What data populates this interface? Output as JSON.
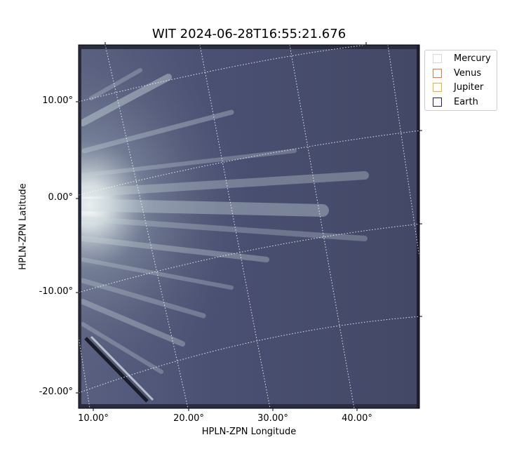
{
  "title": "WIT 2024-06-28T16:55:21.676",
  "axes": {
    "xlabel": "HPLN-ZPN Longitude",
    "ylabel": "HPLN-ZPN Latitude",
    "xticks": [
      "10.00°",
      "20.00°",
      "30.00°",
      "40.00°"
    ],
    "yticks": [
      "10.00°",
      "0.00°",
      "-10.00°",
      "-20.00°"
    ]
  },
  "legend": {
    "placement": "outside-top-right",
    "entries": [
      {
        "name": "Mercury",
        "color": "#d9d9d9"
      },
      {
        "name": "Venus",
        "color": "#e07b39"
      },
      {
        "name": "Jupiter",
        "color": "#e6b422"
      },
      {
        "name": "Earth",
        "color": "#1a1a7a"
      }
    ]
  },
  "image": {
    "colormap_dark": "#3d4260",
    "colormap_light": "#e6eef0",
    "grid": "dotted white"
  }
}
